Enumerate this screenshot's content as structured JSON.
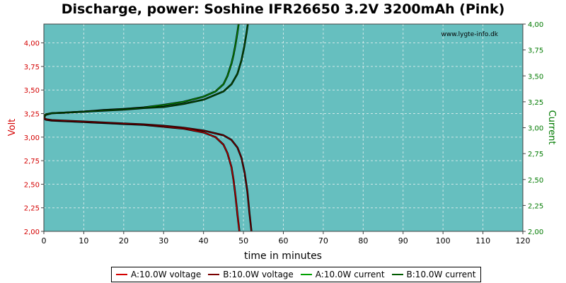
{
  "chart_data": {
    "type": "line",
    "title": "Discharge, power: Soshine IFR26650 3.2V 3200mAh (Pink)",
    "xlabel": "time in minutes",
    "ylabel": "Volt",
    "y2label": "Current",
    "watermark": "www.lygte-info.dk",
    "xlim": [
      0,
      120
    ],
    "ylim": [
      2.0,
      4.2
    ],
    "y2lim": [
      2.0,
      4.0
    ],
    "xticks": [
      "0",
      "10",
      "20",
      "30",
      "40",
      "50",
      "60",
      "70",
      "80",
      "90",
      "100",
      "110",
      "120"
    ],
    "yticks": [
      "2,00",
      "2,25",
      "2,50",
      "2,75",
      "3,00",
      "3,25",
      "3,50",
      "3,75",
      "4,00"
    ],
    "y2ticks": [
      "2,00",
      "2,25",
      "2,50",
      "2,75",
      "3,00",
      "3,25",
      "3,50",
      "3,75",
      "4,00"
    ],
    "grid": true,
    "background": "#66bfbf",
    "legend_position": "bottom",
    "series": [
      {
        "name": "A:10.0W voltage",
        "axis": "left",
        "color": "#d40000",
        "x": [
          0,
          0.5,
          2,
          5,
          10,
          15,
          20,
          25,
          30,
          35,
          40,
          43,
          45,
          46,
          47,
          47.5,
          48,
          48.5,
          49
        ],
        "y": [
          3.2,
          3.185,
          3.175,
          3.17,
          3.16,
          3.15,
          3.14,
          3.13,
          3.11,
          3.09,
          3.05,
          3.0,
          2.92,
          2.83,
          2.68,
          2.55,
          2.38,
          2.18,
          2.0
        ]
      },
      {
        "name": "B:10.0W voltage",
        "axis": "left",
        "color": "#7a0000",
        "x": [
          0,
          0.5,
          2,
          5,
          10,
          15,
          20,
          25,
          30,
          35,
          40,
          45,
          47,
          48.5,
          49.5,
          50.3,
          51,
          51.5,
          52
        ],
        "y": [
          3.21,
          3.19,
          3.18,
          3.175,
          3.165,
          3.155,
          3.145,
          3.135,
          3.12,
          3.1,
          3.07,
          3.02,
          2.97,
          2.89,
          2.78,
          2.62,
          2.42,
          2.2,
          2.0
        ]
      },
      {
        "name": "A:10.0W current",
        "axis": "right",
        "color": "#00a000",
        "x": [
          0,
          0.5,
          2,
          5,
          10,
          15,
          20,
          25,
          30,
          35,
          40,
          43,
          45,
          46,
          47,
          47.5,
          48,
          48.5,
          48.8
        ],
        "y": [
          3.1,
          3.125,
          3.14,
          3.145,
          3.155,
          3.17,
          3.18,
          3.195,
          3.22,
          3.25,
          3.3,
          3.35,
          3.42,
          3.5,
          3.62,
          3.7,
          3.8,
          3.92,
          4.0
        ]
      },
      {
        "name": "B:10.0W current",
        "axis": "right",
        "color": "#005a00",
        "x": [
          0,
          0.5,
          2,
          5,
          10,
          15,
          20,
          25,
          30,
          35,
          40,
          45,
          47,
          48.5,
          49.5,
          50.2,
          50.8,
          51.1
        ],
        "y": [
          3.11,
          3.13,
          3.14,
          3.145,
          3.155,
          3.165,
          3.175,
          3.19,
          3.2,
          3.23,
          3.27,
          3.35,
          3.42,
          3.52,
          3.65,
          3.78,
          3.92,
          4.0
        ]
      }
    ]
  }
}
